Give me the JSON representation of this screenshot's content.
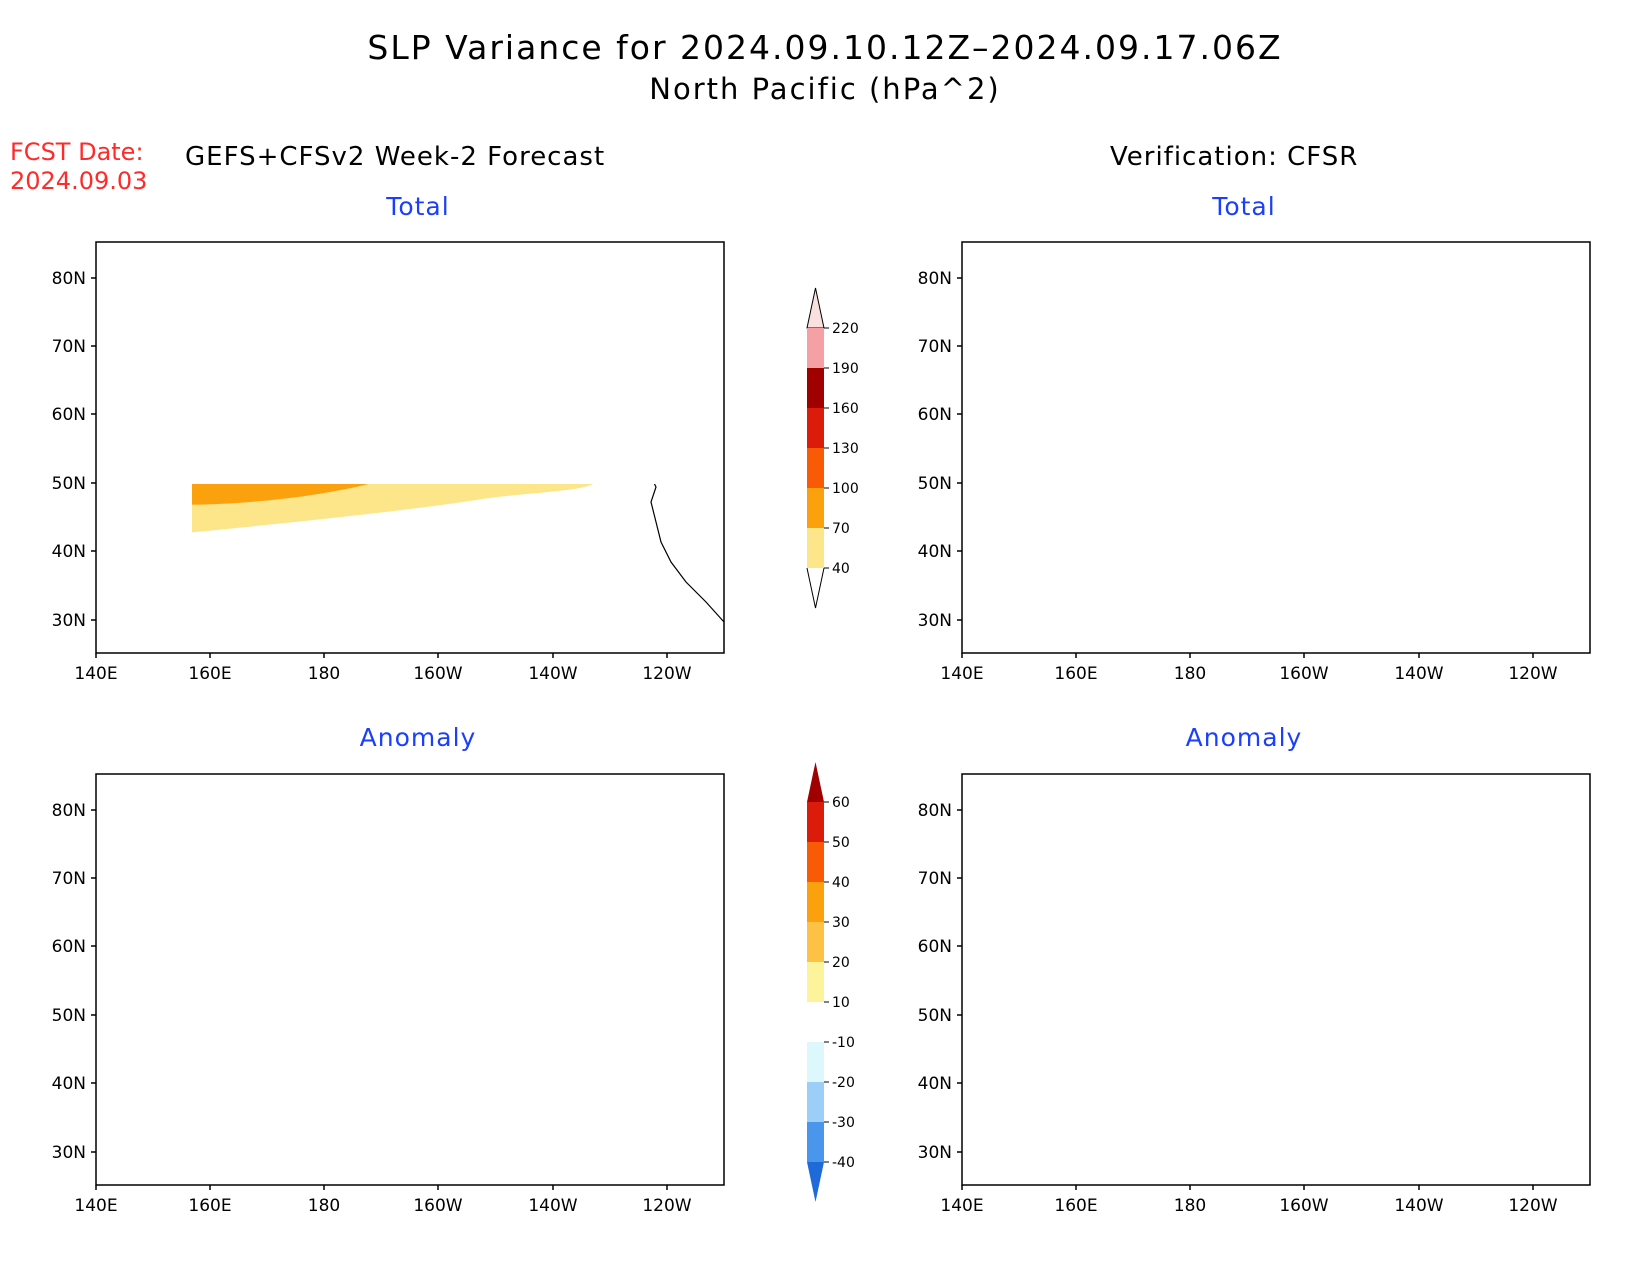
{
  "title": "SLP Variance for 2024.09.10.12Z–2024.09.17.06Z",
  "subtitle": "North Pacific (hPa^2)",
  "fcst_date_label": "FCST Date:",
  "fcst_date_value": "2024.09.03",
  "left_header": "GEFS+CFSv2 Week-2 Forecast",
  "right_header": "Verification: CFSR",
  "panels": {
    "top_left_title": "Total",
    "top_right_title": "Total",
    "bottom_left_title": "Anomaly",
    "bottom_right_title": "Anomaly"
  },
  "axes": {
    "lat_labels": [
      "80N",
      "70N",
      "60N",
      "50N",
      "40N",
      "30N"
    ],
    "lon_labels": [
      "140E",
      "160E",
      "180",
      "160W",
      "140W",
      "120W"
    ]
  },
  "colorbar_total": {
    "levels": [
      "220",
      "190",
      "160",
      "130",
      "100",
      "70",
      "40"
    ],
    "colors": [
      "#fbe0e0",
      "#f4a0a4",
      "#a00000",
      "#dc1c0a",
      "#f85a06",
      "#fca10e",
      "#fde58a"
    ]
  },
  "colorbar_anomaly": {
    "levels": [
      "60",
      "50",
      "40",
      "30",
      "20",
      "10",
      "-10",
      "-20",
      "-30",
      "-40"
    ],
    "colors": [
      "#a00000",
      "#dc1c0a",
      "#f85a06",
      "#fca10e",
      "#fdc146",
      "#fdf39a",
      "#ffffff",
      "#ddf8fc",
      "#9ccff8",
      "#4a96ec",
      "#1e6ad8"
    ]
  }
}
